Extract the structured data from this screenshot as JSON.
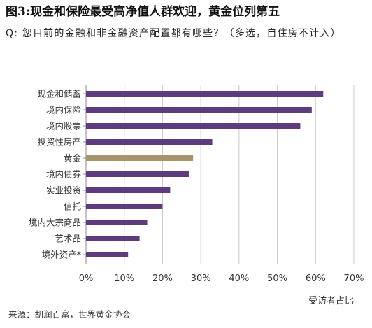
{
  "header": {
    "title": "图3:现金和保险最受高净值人群欢迎，黄金位列第五",
    "question": "Q: 您目前的金融和非金融资产配置都有哪些？（多选，自住房不计入）"
  },
  "colors": {
    "bar": "#5e3a82",
    "highlight": "#a8946a",
    "grid": "#c8c8c8",
    "axis": "#8c8c8c",
    "text": "#333333"
  },
  "chart_data": {
    "type": "bar",
    "orientation": "horizontal",
    "categories": [
      "现金和储蓄",
      "境内保险",
      "境内股票",
      "投资性房产",
      "黄金",
      "境内债券",
      "实业投资",
      "信托",
      "境内大宗商品",
      "艺术品",
      "境外资产*"
    ],
    "values": [
      62,
      59,
      56,
      33,
      28,
      27,
      22,
      20,
      16,
      14,
      11
    ],
    "highlight_category": "黄金",
    "xlim": [
      0,
      70
    ],
    "xticks": [
      0,
      10,
      20,
      30,
      40,
      50,
      60,
      70
    ],
    "xtick_labels": [
      "0%",
      "10%",
      "20%",
      "30%",
      "40%",
      "50%",
      "60%",
      "70%"
    ],
    "xlabel": "受访者占比",
    "ylabel": "",
    "grid": true
  },
  "footer": {
    "source": "来源：胡润百富，世界黄金协会"
  }
}
